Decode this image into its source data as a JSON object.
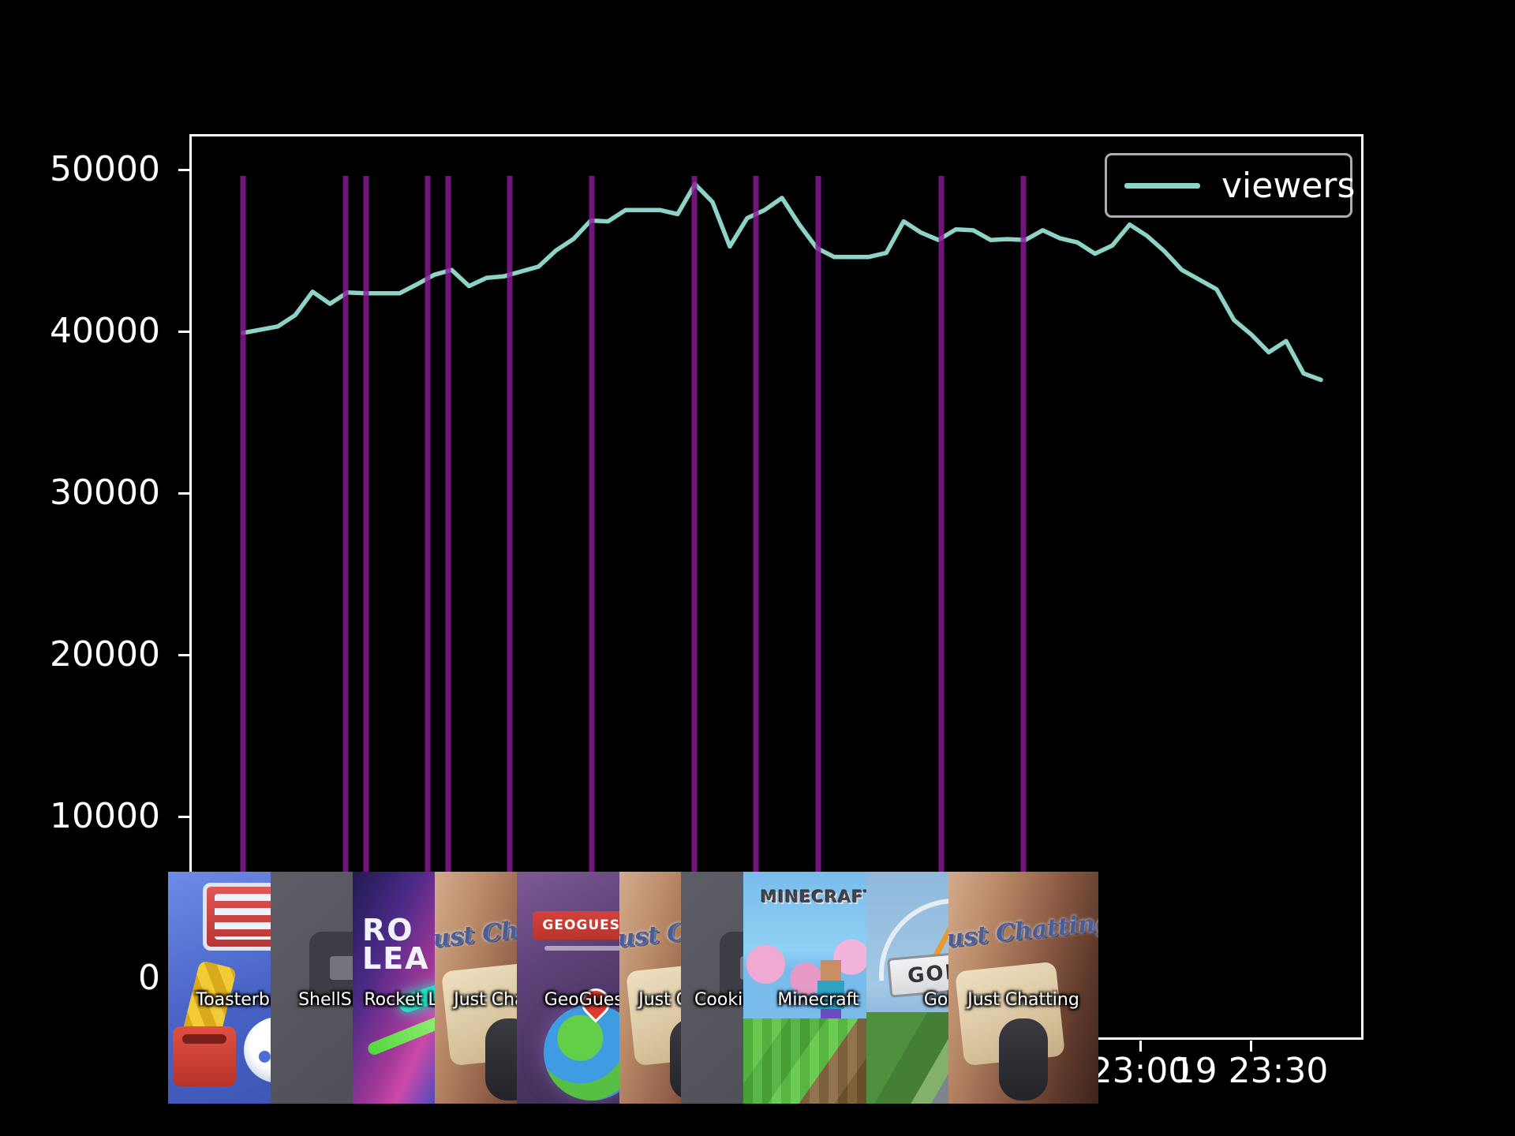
{
  "chart_data": {
    "type": "line",
    "title": "",
    "background_color": "#000000",
    "grid": false,
    "legend": {
      "entries": [
        "viewers"
      ],
      "position": "upper right"
    },
    "x_axis": {
      "unit": "time",
      "start": "18:35",
      "end": "23:45",
      "sample_interval_minutes": 5,
      "tick_labels": [
        "23:00",
        "19 23:30"
      ]
    },
    "y_axis": {
      "ticks": [
        0,
        10000,
        20000,
        30000,
        40000,
        50000
      ],
      "ylim": [
        -3800,
        52400
      ]
    },
    "series": [
      {
        "name": "viewers",
        "color": "#8dd3c7",
        "values": [
          39900,
          40100,
          40300,
          41000,
          42450,
          41700,
          42400,
          42350,
          42350,
          42350,
          42900,
          43500,
          43800,
          42800,
          43300,
          43400,
          43700,
          44000,
          45000,
          45700,
          46850,
          46800,
          47500,
          47500,
          47500,
          47250,
          49100,
          48000,
          45250,
          47000,
          47500,
          48250,
          46600,
          45150,
          44600,
          44600,
          44600,
          44850,
          46800,
          46100,
          45650,
          46300,
          46250,
          45650,
          45700,
          45650,
          46250,
          45750,
          45500,
          44800,
          45300,
          46600,
          45900,
          44950,
          43800,
          43200,
          42600,
          40700,
          39800,
          38700,
          39400,
          37400,
          37000
        ]
      }
    ],
    "event_lines": {
      "color": "#800080",
      "approx_times": [
        "18:35",
        "19:05",
        "19:11",
        "19:29",
        "19:35",
        "19:53",
        "20:17",
        "20:47",
        "21:05",
        "21:23",
        "21:59",
        "22:23"
      ]
    },
    "category_changes": [
      {
        "time": "18:35",
        "label": "Toasterball"
      },
      {
        "time": "19:05",
        "label": "ShellShock"
      },
      {
        "time": "19:29",
        "label": "Rocket League"
      },
      {
        "time": "19:53",
        "label": "Just Chatting"
      },
      {
        "time": "20:17",
        "label": "GeoGuessr"
      },
      {
        "time": "20:47",
        "label": "Just Chatting"
      },
      {
        "time": "21:05",
        "label": "Cookie Clicker"
      },
      {
        "time": "21:23",
        "label": "Minecraft"
      },
      {
        "time": "21:59",
        "label": "Golf"
      },
      {
        "time": "22:23",
        "label": "Just Chatting"
      }
    ]
  },
  "legend": {
    "label": "viewers"
  },
  "axes": {
    "y_labels": [
      "50000",
      "40000",
      "30000",
      "20000",
      "10000",
      "0"
    ],
    "x_labels": [
      "23:00",
      "19 23:30"
    ]
  },
  "thumbnails": [
    {
      "label": "Toasterball",
      "art": "toasterball"
    },
    {
      "label": "ShellShock",
      "art": "graybox"
    },
    {
      "label": "Rocket League",
      "art": "rocket"
    },
    {
      "label": "Just Chatting",
      "art": "justchat"
    },
    {
      "label": "GeoGuessr",
      "art": "geo"
    },
    {
      "label": "Just Chatting",
      "art": "justchat"
    },
    {
      "label": "Cookie Clicker",
      "art": "graybox"
    },
    {
      "label": "Minecraft",
      "art": "minecraft"
    },
    {
      "label": "Golf",
      "art": "golf"
    },
    {
      "label": "Just Chatting",
      "art": "justchat"
    }
  ],
  "art_text": {
    "minecraft_logo": "MINECRAFT",
    "geoguessr_banner": "GEOGUESSR",
    "golf_sign": "GOLF",
    "rocket_line1": "RO",
    "rocket_line2": "LEA",
    "just_chatting_script": "Just Chatting"
  },
  "colors": {
    "line": "#8dd3c7",
    "event_line": "#8b1a96",
    "axis": "#ffffff",
    "legend_border": "#adadad"
  }
}
